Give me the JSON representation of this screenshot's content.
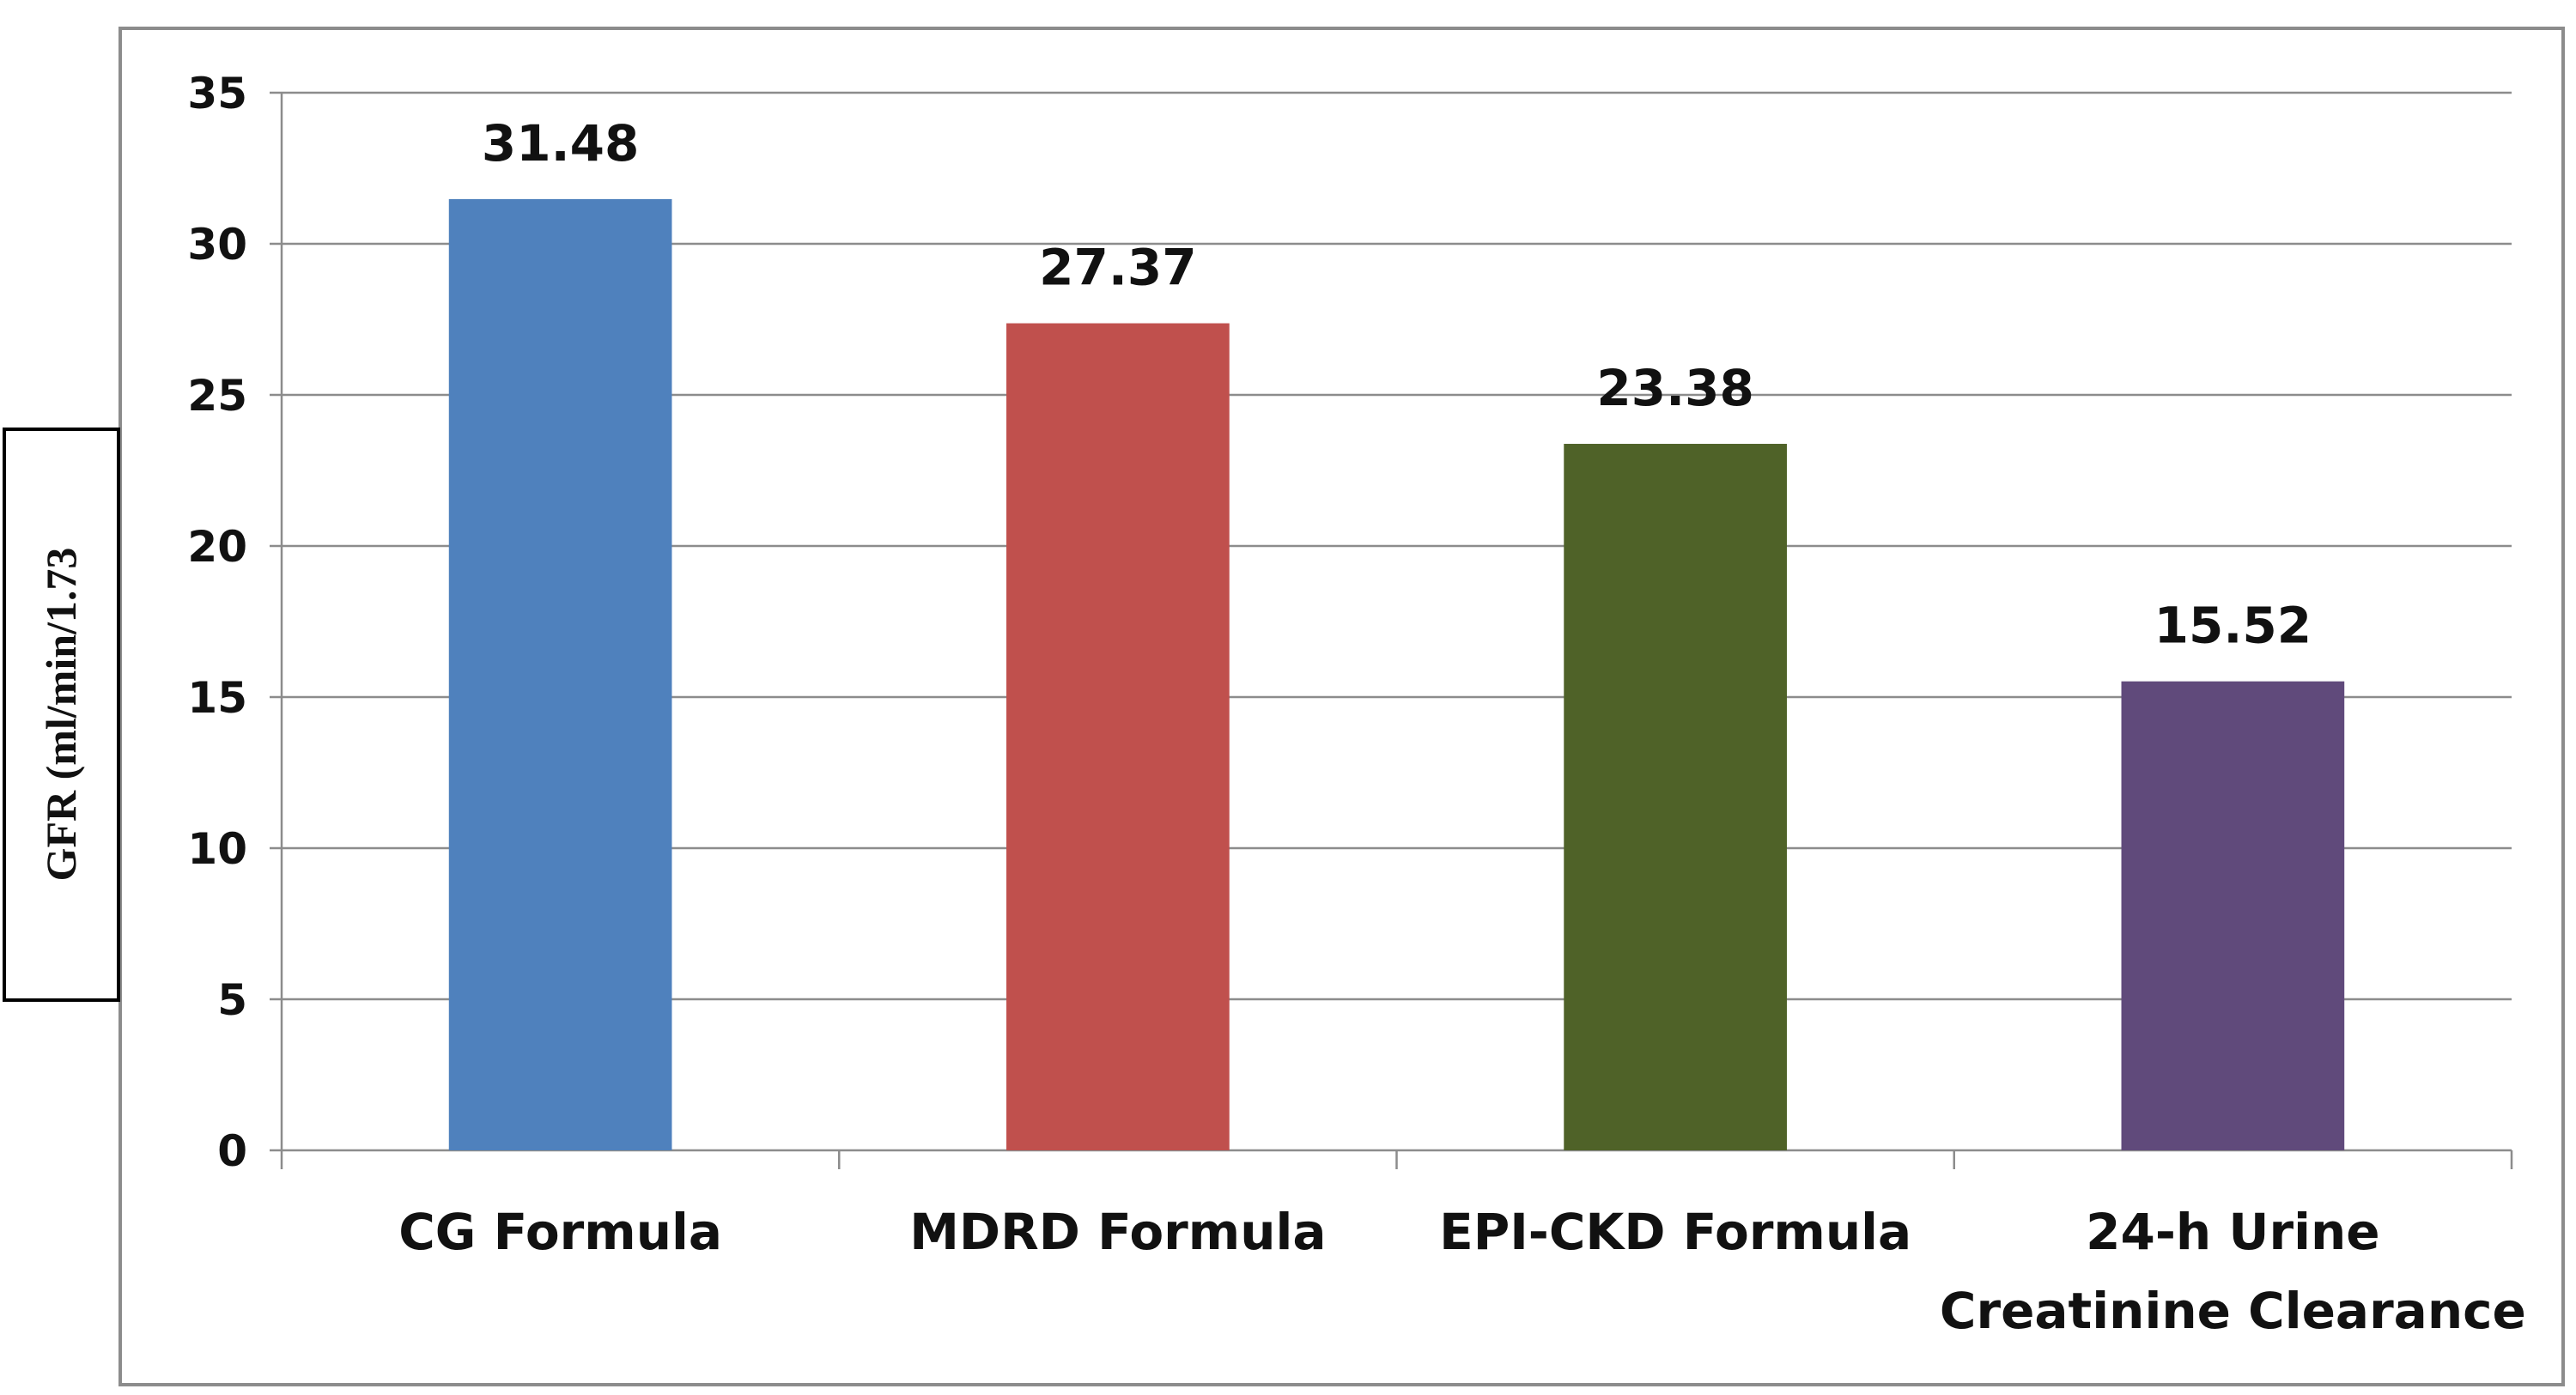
{
  "chart_data": {
    "type": "bar",
    "categories": [
      [
        "CG Formula"
      ],
      [
        "MDRD Formula"
      ],
      [
        "EPI-CKD Formula"
      ],
      [
        "24-h Urine",
        "Creatinine Clearance"
      ]
    ],
    "values": [
      31.48,
      27.37,
      23.38,
      15.52
    ],
    "value_labels": [
      "31.48",
      "27.37",
      "23.38",
      "15.52"
    ],
    "colors": [
      "#4F81BD",
      "#C0504D",
      "#4F6228",
      "#604A7B"
    ],
    "title": "",
    "xlabel": "",
    "ylabel": "GFR (ml/min/1.73",
    "ylim": [
      0,
      35
    ],
    "yticks": [
      0,
      5,
      10,
      15,
      20,
      25,
      30,
      35
    ],
    "grid": true,
    "legend": "none"
  }
}
